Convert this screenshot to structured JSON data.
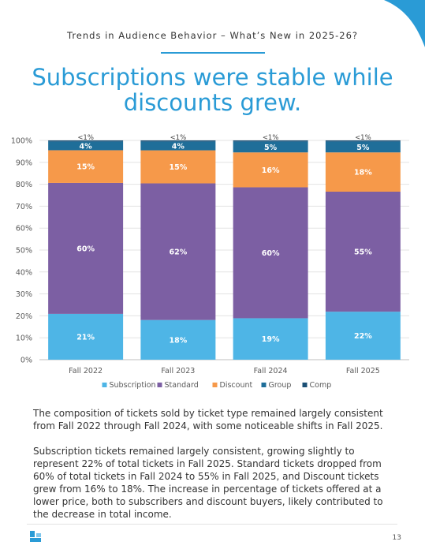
{
  "header": {
    "subtitle": "Trends in Audience Behavior – What’s New in 2025-26?"
  },
  "headline": {
    "line1": "Subscriptions were stable while",
    "line2": "discounts grew."
  },
  "chart_data": {
    "type": "bar",
    "stacked": true,
    "percent_stacked": true,
    "categories": [
      "Fall 2022",
      "Fall 2023",
      "Fall 2024",
      "Fall 2025"
    ],
    "series": [
      {
        "name": "Subscription",
        "color": "#4eb5e6",
        "values": [
          21,
          18,
          19,
          22
        ],
        "labels": [
          "21%",
          "18%",
          "19%",
          "22%"
        ]
      },
      {
        "name": "Standard",
        "color": "#7c5fa3",
        "values": [
          60,
          62,
          60,
          55
        ],
        "labels": [
          "60%",
          "62%",
          "60%",
          "55%"
        ]
      },
      {
        "name": "Discount",
        "color": "#f6994a",
        "values": [
          15,
          15,
          16,
          18
        ],
        "labels": [
          "15%",
          "15%",
          "16%",
          "18%"
        ]
      },
      {
        "name": "Group",
        "color": "#1f6e99",
        "values": [
          4,
          4,
          5,
          5
        ],
        "labels": [
          "4%",
          "4%",
          "5%",
          "5%"
        ]
      },
      {
        "name": "Comp",
        "color": "#1b4f75",
        "values": [
          0.5,
          0.5,
          0.5,
          0.5
        ],
        "labels": [
          "<1%",
          "<1%",
          "<1%",
          "<1%"
        ]
      }
    ],
    "y_ticks": [
      "0%",
      "10%",
      "20%",
      "30%",
      "40%",
      "50%",
      "60%",
      "70%",
      "80%",
      "90%",
      "100%"
    ],
    "ylim": [
      0,
      100
    ],
    "grid": true,
    "legend": "bottom"
  },
  "body": {
    "paragraph1": "The composition of tickets sold by ticket type remained largely consistent from Fall 2022 through Fall 2024, with some noticeable shifts in Fall 2025.",
    "paragraph2": "Subscription tickets remained largely consistent, growing slightly to represent 22% of total tickets in Fall 2025. Standard tickets dropped from 60% of total tickets in Fall 2024 to 55% in Fall 2025, and Discount tickets grew from 16% to 18%. The increase in percentage of tickets offered at a lower price, both to subscribers and discount buyers, likely contributed to the decrease in total income."
  },
  "footer": {
    "page_number": "13"
  },
  "colors": {
    "accent": "#2a9bd6"
  },
  "icons": {
    "logo": "brand-logo-icon",
    "corner": "corner-decoration"
  }
}
